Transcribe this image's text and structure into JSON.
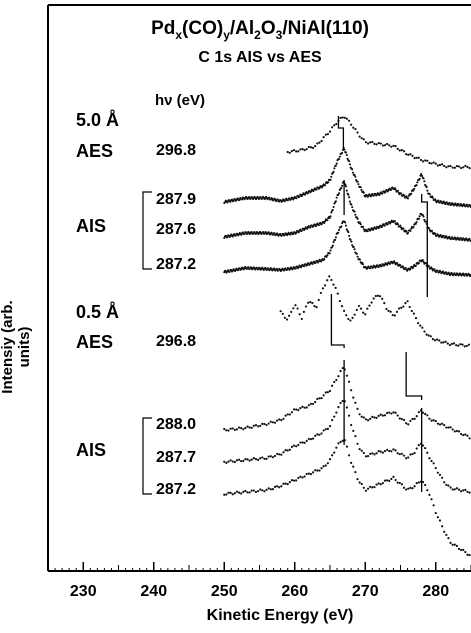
{
  "chart_data": {
    "type": "line",
    "title_parts": [
      "Pd",
      "x",
      "(CO)",
      "y",
      "/Al",
      "2",
      "O",
      "3",
      "/NiAl(110)"
    ],
    "subtitle": "C 1s AIS vs AES",
    "xlabel": "Kinetic Energy (eV)",
    "ylabel": "Intensiy (arb. units)",
    "xlim": [
      225,
      285
    ],
    "xticks": [
      230,
      240,
      250,
      260,
      270,
      280
    ],
    "hv_header": "hν (eV)",
    "grid": false,
    "groups": [
      {
        "coverage": "5.0 Å",
        "aes_label": "AES",
        "aes_hv": "296.8",
        "ais_label": "AIS",
        "ais_hv": [
          "287.9",
          "287.6",
          "287.2"
        ]
      },
      {
        "coverage": "0.5 Å",
        "aes_label": "AES",
        "aes_hv": "296.8",
        "ais_label": "AIS",
        "ais_hv": [
          "288.0",
          "287.7",
          "287.2"
        ]
      }
    ],
    "series": [
      {
        "label": "5.0 Å AES 296.8 eV",
        "baseline": 166,
        "style": "dots",
        "points": [
          [
            259,
            -14
          ],
          [
            261,
            -16
          ],
          [
            263,
            -20
          ],
          [
            265,
            -35
          ],
          [
            266,
            -44
          ],
          [
            267,
            -50
          ],
          [
            268,
            -42
          ],
          [
            269,
            -32
          ],
          [
            270,
            -24
          ],
          [
            272,
            -22
          ],
          [
            274,
            -20
          ],
          [
            276,
            -12
          ],
          [
            278,
            -6
          ],
          [
            280,
            -2
          ],
          [
            282,
            1
          ],
          [
            285,
            1
          ]
        ]
      },
      {
        "label": "5.0 Å AIS 287.9 eV",
        "baseline": 202,
        "style": "solid",
        "points": [
          [
            250,
            0
          ],
          [
            253,
            -4
          ],
          [
            256,
            -4
          ],
          [
            258,
            -1
          ],
          [
            260,
            -4
          ],
          [
            262,
            -10
          ],
          [
            264,
            -16
          ],
          [
            265,
            -22
          ],
          [
            266,
            -40
          ],
          [
            267,
            -54
          ],
          [
            268,
            -34
          ],
          [
            269,
            -18
          ],
          [
            270,
            -6
          ],
          [
            272,
            -8
          ],
          [
            274,
            -14
          ],
          [
            275,
            -8
          ],
          [
            276,
            -4
          ],
          [
            277,
            -14
          ],
          [
            278,
            -28
          ],
          [
            279,
            -8
          ],
          [
            280,
            -1
          ],
          [
            282,
            2
          ],
          [
            285,
            4
          ]
        ]
      },
      {
        "label": "5.0 Å AIS 287.6 eV",
        "baseline": 237,
        "style": "solid",
        "points": [
          [
            250,
            0
          ],
          [
            253,
            -4
          ],
          [
            256,
            -4
          ],
          [
            258,
            -2
          ],
          [
            260,
            -4
          ],
          [
            262,
            -10
          ],
          [
            264,
            -14
          ],
          [
            265,
            -20
          ],
          [
            266,
            -40
          ],
          [
            267,
            -56
          ],
          [
            268,
            -32
          ],
          [
            269,
            -16
          ],
          [
            270,
            -6
          ],
          [
            272,
            -10
          ],
          [
            274,
            -16
          ],
          [
            275,
            -10
          ],
          [
            276,
            -4
          ],
          [
            277,
            -12
          ],
          [
            278,
            -24
          ],
          [
            279,
            -8
          ],
          [
            280,
            -2
          ],
          [
            282,
            1
          ],
          [
            285,
            3
          ]
        ]
      },
      {
        "label": "5.0 Å AIS 287.2 eV",
        "baseline": 272,
        "style": "solid",
        "points": [
          [
            250,
            0
          ],
          [
            253,
            -4
          ],
          [
            256,
            -3
          ],
          [
            258,
            -2
          ],
          [
            260,
            -4
          ],
          [
            262,
            -8
          ],
          [
            264,
            -12
          ],
          [
            265,
            -20
          ],
          [
            266,
            -38
          ],
          [
            267,
            -52
          ],
          [
            268,
            -30
          ],
          [
            269,
            -14
          ],
          [
            270,
            -4
          ],
          [
            272,
            -6
          ],
          [
            274,
            -10
          ],
          [
            275,
            -6
          ],
          [
            276,
            -2
          ],
          [
            277,
            -6
          ],
          [
            278,
            -12
          ],
          [
            279,
            -5
          ],
          [
            280,
            -1
          ],
          [
            282,
            2
          ],
          [
            285,
            3
          ]
        ]
      },
      {
        "label": "0.5 Å AES 296.8 eV",
        "baseline": 322,
        "style": "dots",
        "points": [
          [
            258,
            -10
          ],
          [
            259,
            -2
          ],
          [
            260,
            -18
          ],
          [
            261,
            -4
          ],
          [
            262,
            -22
          ],
          [
            263,
            -14
          ],
          [
            264,
            -34
          ],
          [
            265,
            -46
          ],
          [
            266,
            -30
          ],
          [
            267,
            -10
          ],
          [
            268,
            0
          ],
          [
            269,
            -16
          ],
          [
            270,
            -8
          ],
          [
            271,
            -22
          ],
          [
            272,
            -28
          ],
          [
            273,
            -14
          ],
          [
            274,
            -6
          ],
          [
            275,
            -14
          ],
          [
            276,
            -20
          ],
          [
            277,
            -6
          ],
          [
            278,
            6
          ],
          [
            279,
            14
          ],
          [
            280,
            18
          ],
          [
            282,
            22
          ],
          [
            285,
            24
          ]
        ]
      },
      {
        "label": "0.5 Å AIS 288.0 eV",
        "baseline": 430,
        "style": "dots",
        "points": [
          [
            250,
            0
          ],
          [
            253,
            -2
          ],
          [
            256,
            -6
          ],
          [
            258,
            -10
          ],
          [
            260,
            -20
          ],
          [
            262,
            -24
          ],
          [
            264,
            -34
          ],
          [
            265,
            -40
          ],
          [
            266,
            -52
          ],
          [
            267,
            -64
          ],
          [
            268,
            -40
          ],
          [
            269,
            -18
          ],
          [
            270,
            -10
          ],
          [
            272,
            -14
          ],
          [
            274,
            -18
          ],
          [
            275,
            -12
          ],
          [
            276,
            -6
          ],
          [
            277,
            -12
          ],
          [
            278,
            -20
          ],
          [
            279,
            -12
          ],
          [
            280,
            -8
          ],
          [
            282,
            -2
          ],
          [
            285,
            8
          ]
        ]
      },
      {
        "label": "0.5 Å AIS 287.7 eV",
        "baseline": 462,
        "style": "dots",
        "points": [
          [
            250,
            0
          ],
          [
            253,
            -2
          ],
          [
            256,
            -4
          ],
          [
            258,
            -8
          ],
          [
            260,
            -16
          ],
          [
            262,
            -22
          ],
          [
            264,
            -30
          ],
          [
            265,
            -36
          ],
          [
            266,
            -52
          ],
          [
            267,
            -64
          ],
          [
            268,
            -38
          ],
          [
            269,
            -16
          ],
          [
            270,
            -6
          ],
          [
            272,
            -10
          ],
          [
            274,
            -12
          ],
          [
            275,
            -8
          ],
          [
            276,
            -4
          ],
          [
            277,
            -10
          ],
          [
            278,
            -20
          ],
          [
            279,
            -6
          ],
          [
            280,
            6
          ],
          [
            281,
            18
          ],
          [
            282,
            26
          ],
          [
            285,
            30
          ]
        ]
      },
      {
        "label": "0.5 Å AIS 287.2 eV",
        "baseline": 494,
        "style": "dots",
        "points": [
          [
            250,
            0
          ],
          [
            253,
            -2
          ],
          [
            256,
            -4
          ],
          [
            258,
            -8
          ],
          [
            260,
            -14
          ],
          [
            262,
            -20
          ],
          [
            264,
            -26
          ],
          [
            265,
            -34
          ],
          [
            266,
            -48
          ],
          [
            267,
            -56
          ],
          [
            268,
            -32
          ],
          [
            269,
            -14
          ],
          [
            270,
            -4
          ],
          [
            272,
            -10
          ],
          [
            274,
            -16
          ],
          [
            275,
            -10
          ],
          [
            276,
            -4
          ],
          [
            277,
            -8
          ],
          [
            278,
            -14
          ],
          [
            279,
            -2
          ],
          [
            280,
            18
          ],
          [
            281,
            34
          ],
          [
            282,
            48
          ],
          [
            285,
            62
          ]
        ]
      }
    ],
    "markers": [
      {
        "x": [
          266.2,
          266.9
        ],
        "top": 116,
        "mid": 128,
        "bottom": 150
      },
      {
        "x": [
          267.0
        ],
        "top": 180,
        "bottom": 215
      },
      {
        "x": [
          278.0,
          278.8
        ],
        "top": 194,
        "mid": 202,
        "bottom": 297
      },
      {
        "x": [
          265.2,
          267.0
        ],
        "top": 294,
        "mid": 345,
        "bottom": 348
      },
      {
        "x": [
          267.0
        ],
        "top": 360,
        "bottom": 445
      },
      {
        "x": [
          275.8,
          278.0
        ],
        "top": 352,
        "mid": 396,
        "bottom": 400
      },
      {
        "x": [
          278.0
        ],
        "top": 408,
        "bottom": 492
      }
    ]
  }
}
